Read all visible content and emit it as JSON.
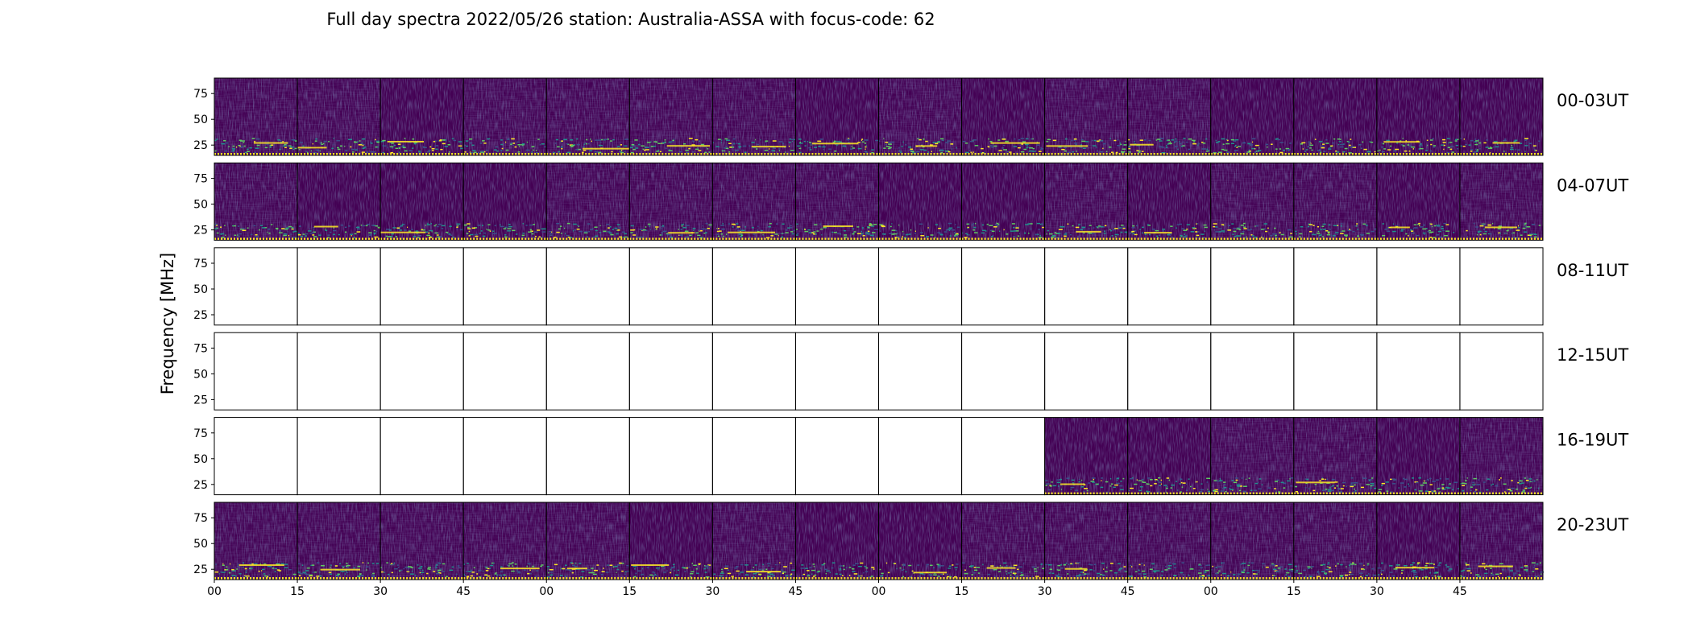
{
  "chart_data": {
    "type": "heatmap",
    "title": "Full day spectra 2022/05/26 station: Australia-ASSA with focus-code: 62",
    "ylabel": "Frequency [MHz]",
    "xlabel": "",
    "y_ticks": [
      "75",
      "50",
      "25"
    ],
    "y_tick_values": [
      75,
      50,
      25
    ],
    "ylim": [
      15,
      90
    ],
    "x_ticks": [
      "00",
      "15",
      "30",
      "45",
      "00",
      "15",
      "30",
      "45",
      "00",
      "15",
      "30",
      "45",
      "00",
      "15",
      "30",
      "45"
    ],
    "panels_per_row": 16,
    "panel_minutes": 15,
    "colormap": "viridis",
    "colors": {
      "background_dark": "#440154",
      "low": "#3b528b",
      "mid": "#21918c",
      "high": "#5ec962",
      "peak": "#fde725"
    },
    "rows": [
      {
        "label": "00-03UT",
        "has_data": [
          true,
          true,
          true,
          true,
          true,
          true,
          true,
          true,
          true,
          true,
          true,
          true,
          true,
          true,
          true,
          true
        ]
      },
      {
        "label": "04-07UT",
        "has_data": [
          true,
          true,
          true,
          true,
          true,
          true,
          true,
          true,
          true,
          true,
          true,
          true,
          true,
          true,
          true,
          true
        ]
      },
      {
        "label": "08-11UT",
        "has_data": [
          false,
          false,
          false,
          false,
          false,
          false,
          false,
          false,
          false,
          false,
          false,
          false,
          false,
          false,
          false,
          false
        ]
      },
      {
        "label": "12-15UT",
        "has_data": [
          false,
          false,
          false,
          false,
          false,
          false,
          false,
          false,
          false,
          false,
          false,
          false,
          false,
          false,
          false,
          false
        ]
      },
      {
        "label": "16-19UT",
        "has_data": [
          false,
          false,
          false,
          false,
          false,
          false,
          false,
          false,
          false,
          false,
          true,
          true,
          true,
          true,
          true,
          true
        ]
      },
      {
        "label": "20-23UT",
        "has_data": [
          true,
          true,
          true,
          true,
          true,
          true,
          true,
          true,
          true,
          true,
          true,
          true,
          true,
          true,
          true,
          true
        ]
      }
    ]
  }
}
